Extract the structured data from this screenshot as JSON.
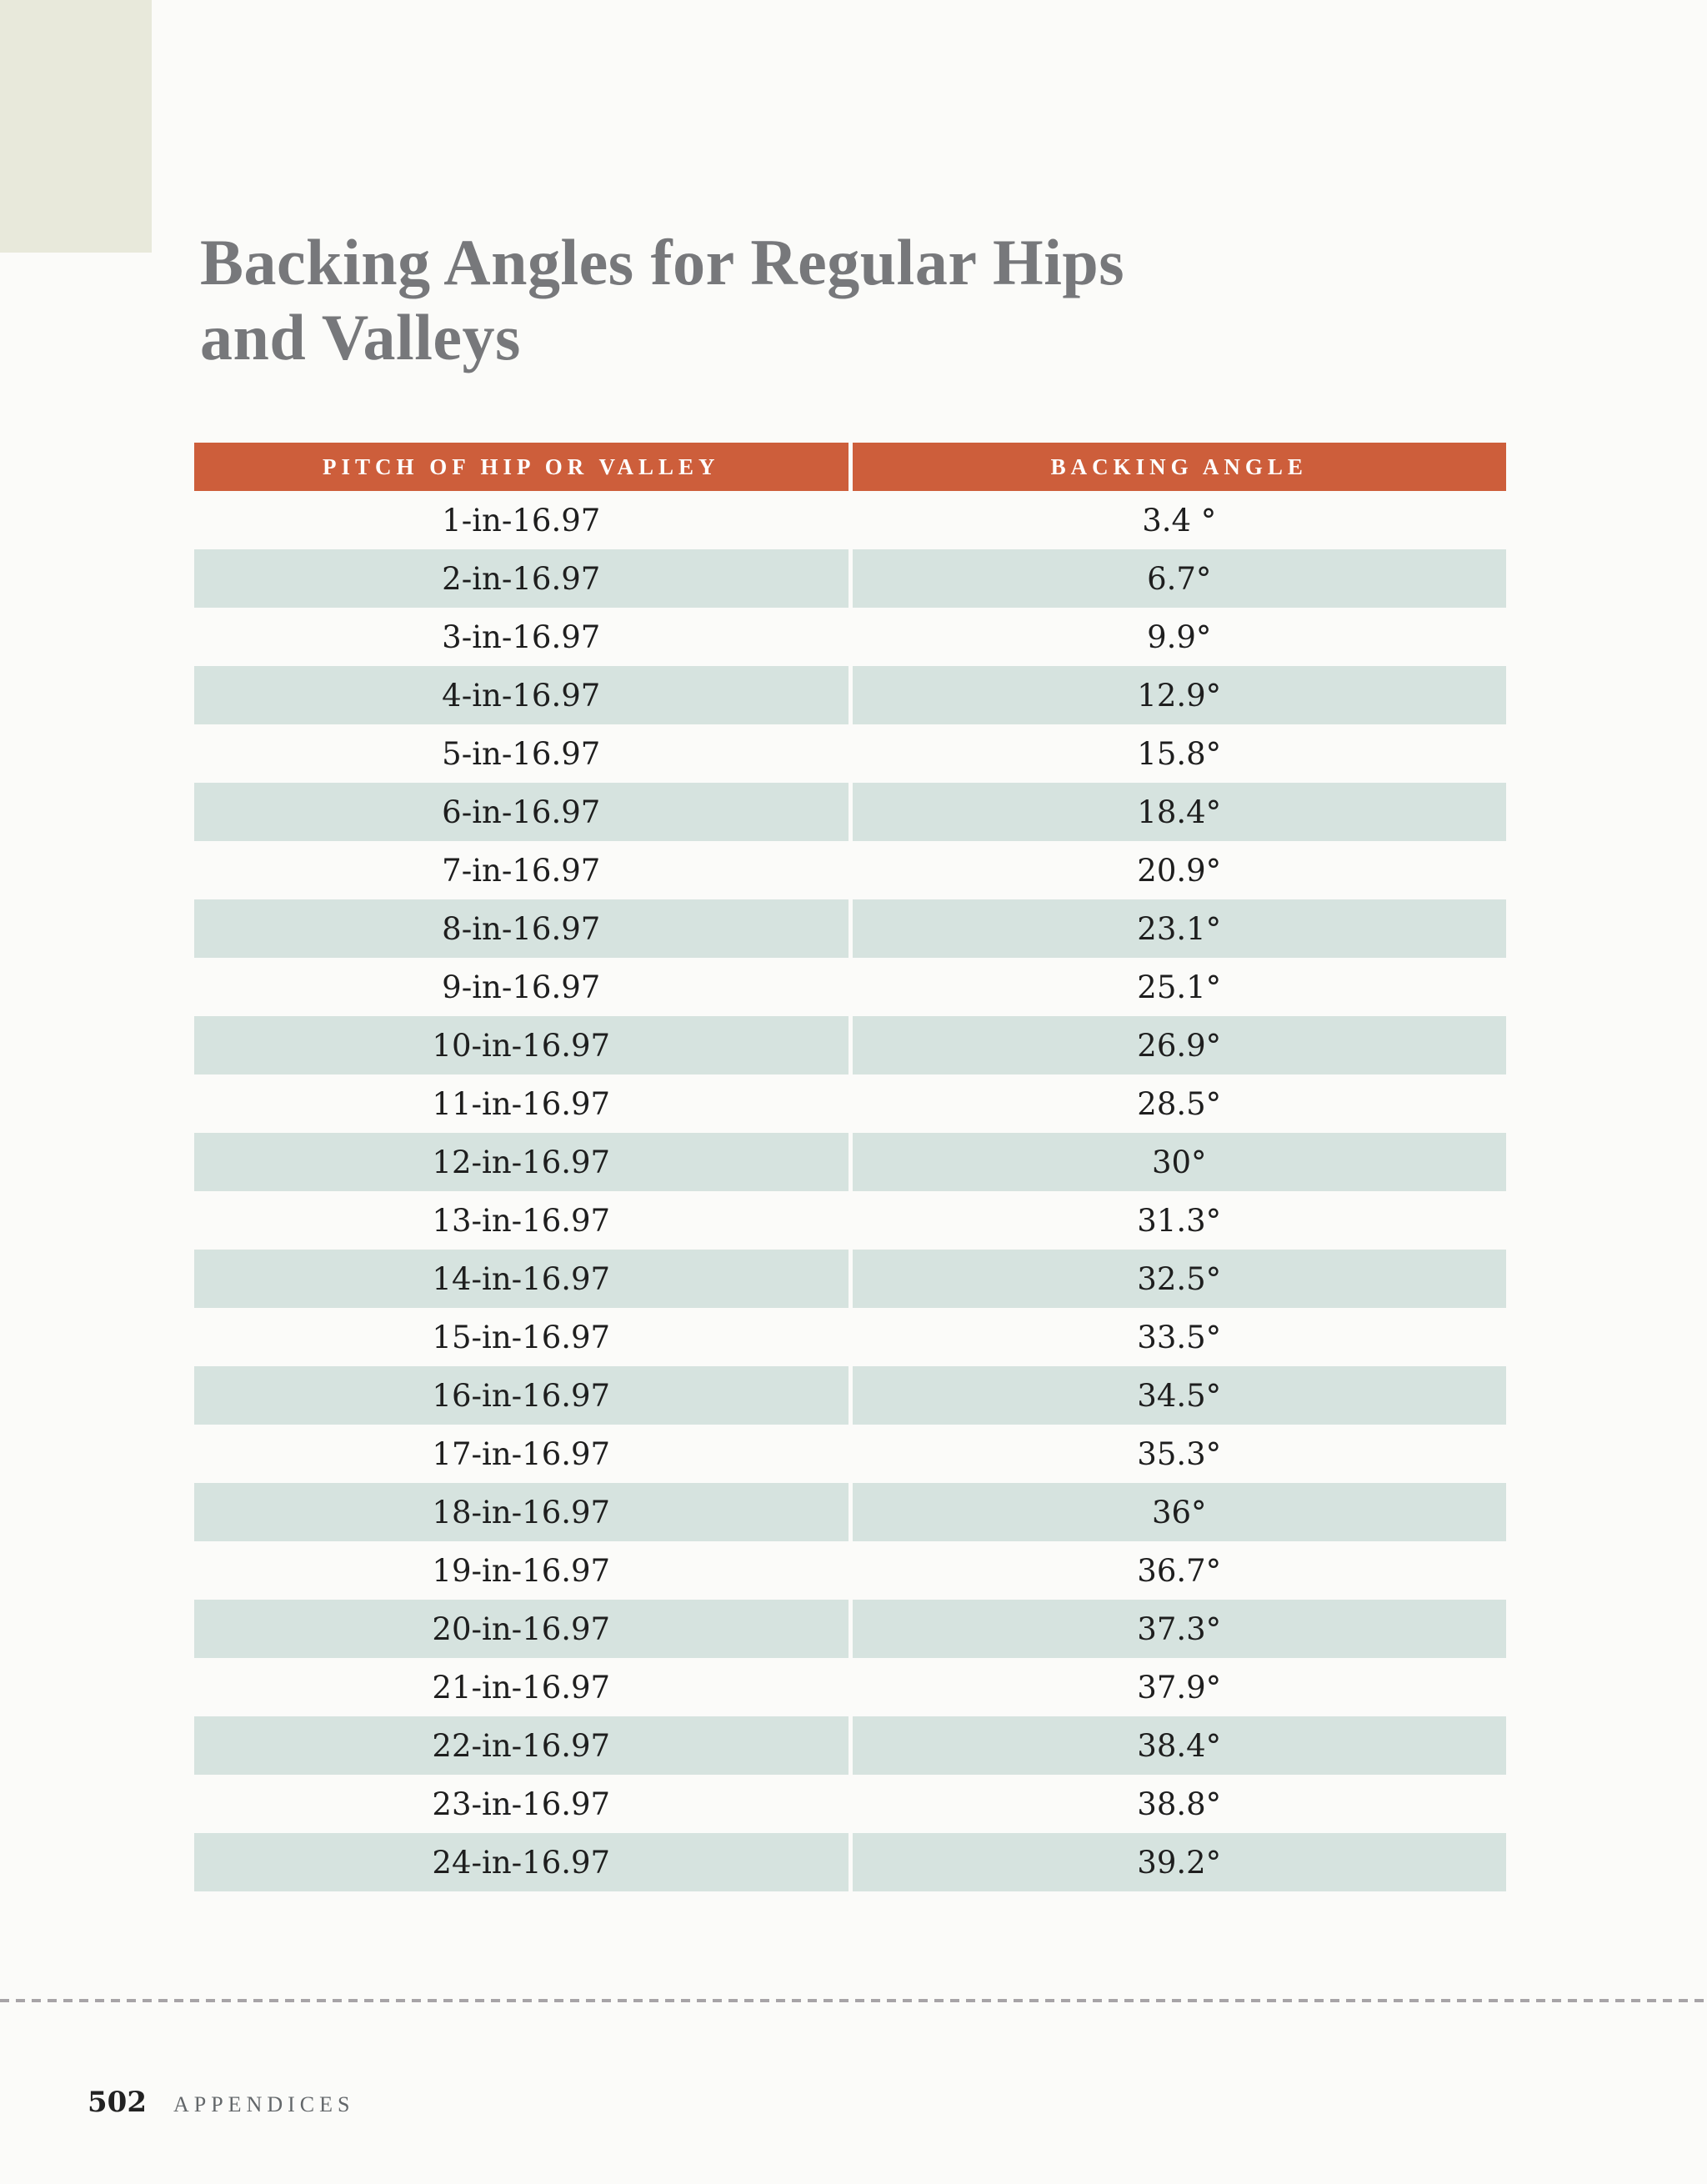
{
  "header": {
    "title_line1": "Backing Angles for Regular Hips",
    "title_line2": "and Valleys"
  },
  "table": {
    "columns": [
      "PITCH OF HIP OR VALLEY",
      "BACKING ANGLE"
    ],
    "rows": [
      [
        "1-in-16.97",
        "3.4 °"
      ],
      [
        "2-in-16.97",
        "6.7°"
      ],
      [
        "3-in-16.97",
        "9.9°"
      ],
      [
        "4-in-16.97",
        "12.9°"
      ],
      [
        "5-in-16.97",
        "15.8°"
      ],
      [
        "6-in-16.97",
        "18.4°"
      ],
      [
        "7-in-16.97",
        "20.9°"
      ],
      [
        "8-in-16.97",
        "23.1°"
      ],
      [
        "9-in-16.97",
        "25.1°"
      ],
      [
        "10-in-16.97",
        "26.9°"
      ],
      [
        "11-in-16.97",
        "28.5°"
      ],
      [
        "12-in-16.97",
        "30°"
      ],
      [
        "13-in-16.97",
        "31.3°"
      ],
      [
        "14-in-16.97",
        "32.5°"
      ],
      [
        "15-in-16.97",
        "33.5°"
      ],
      [
        "16-in-16.97",
        "34.5°"
      ],
      [
        "17-in-16.97",
        "35.3°"
      ],
      [
        "18-in-16.97",
        "36°"
      ],
      [
        "19-in-16.97",
        "36.7°"
      ],
      [
        "20-in-16.97",
        "37.3°"
      ],
      [
        "21-in-16.97",
        "37.9°"
      ],
      [
        "22-in-16.97",
        "38.4°"
      ],
      [
        "23-in-16.97",
        "38.8°"
      ],
      [
        "24-in-16.97",
        "39.2°"
      ]
    ]
  },
  "footer": {
    "page_number": "502",
    "section_label": "APPENDICES"
  },
  "colors": {
    "page_background": "#fbfbf9",
    "corner_block": "#e8e9db",
    "table_header_bg": "#cd5e3b",
    "table_header_text": "#ffffff",
    "row_shade": "#d6e3df",
    "title_text": "#77787b",
    "body_text": "#1e1e1e",
    "dashed_rule": "#a7a4a7"
  }
}
